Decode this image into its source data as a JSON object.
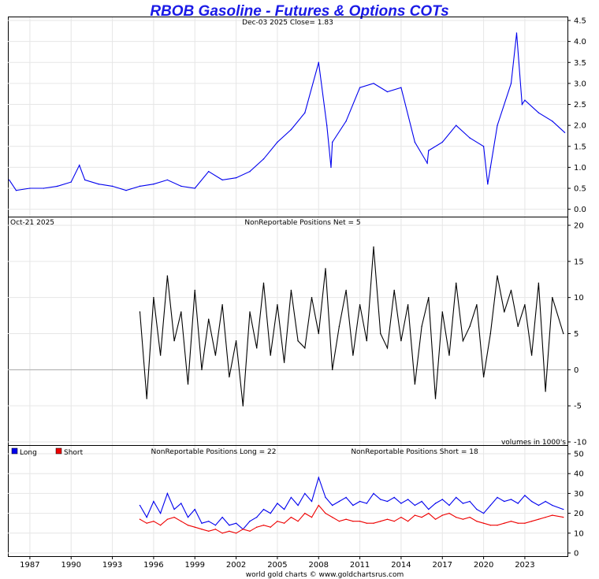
{
  "chart_data": [
    {
      "type": "line",
      "title": "RBOB Gasoline - Futures & Options COTs",
      "header": "Dec-03  2025   Close= 1.83",
      "series": [
        {
          "name": "RBOB Gasoline price",
          "color": "#0000ee",
          "x": [
            1985.5,
            1986,
            1987,
            1988,
            1989,
            1990,
            1990.6,
            1991,
            1992,
            1993,
            1994,
            1995,
            1996,
            1997,
            1998,
            1999,
            2000,
            2001,
            2002,
            2003,
            2004,
            2005,
            2006,
            2007,
            2008,
            2008.6,
            2008.9,
            2009,
            2010,
            2011,
            2012,
            2013,
            2014,
            2015,
            2015.9,
            2016,
            2017,
            2018,
            2019,
            2020,
            2020.3,
            2020.5,
            2021,
            2022,
            2022.4,
            2022.8,
            2023,
            2024,
            2025,
            2025.9
          ],
          "values": [
            0.7,
            0.45,
            0.5,
            0.5,
            0.55,
            0.65,
            1.05,
            0.7,
            0.6,
            0.55,
            0.45,
            0.55,
            0.6,
            0.7,
            0.55,
            0.5,
            0.9,
            0.7,
            0.75,
            0.9,
            1.2,
            1.6,
            1.9,
            2.3,
            3.5,
            2.0,
            1.0,
            1.6,
            2.1,
            2.9,
            3.0,
            2.8,
            2.9,
            1.6,
            1.1,
            1.4,
            1.6,
            2.0,
            1.7,
            1.5,
            0.6,
            1.0,
            2.0,
            3.0,
            4.2,
            2.5,
            2.6,
            2.3,
            2.1,
            1.83
          ]
        }
      ],
      "ylim": [
        -0.1,
        4.5
      ],
      "yticks": [
        "4.5",
        "4.0",
        "3.5",
        "3.0",
        "2.5",
        "2.0",
        "1.5",
        "1.0",
        "0.5",
        "0.0"
      ],
      "xlim": [
        1985.4,
        2026.1
      ]
    },
    {
      "type": "line",
      "date_label": "Oct-21  2025",
      "title": "NonReportable Positions Net = 5",
      "note": "volumes in 1000's",
      "series": [
        {
          "name": "NonReportable Net",
          "color": "#000000",
          "x": [
            1995,
            1995.5,
            1996,
            1996.5,
            1997,
            1997.5,
            1998,
            1998.5,
            1999,
            1999.5,
            2000,
            2000.5,
            2001,
            2001.5,
            2002,
            2002.5,
            2003,
            2003.5,
            2004,
            2004.5,
            2005,
            2005.5,
            2006,
            2006.5,
            2007,
            2007.5,
            2008,
            2008.5,
            2009,
            2009.5,
            2010,
            2010.5,
            2011,
            2011.5,
            2012,
            2012.5,
            2013,
            2013.5,
            2014,
            2014.5,
            2015,
            2015.5,
            2016,
            2016.5,
            2017,
            2017.5,
            2018,
            2018.5,
            2019,
            2019.5,
            2020,
            2020.5,
            2021,
            2021.5,
            2022,
            2022.5,
            2023,
            2023.5,
            2024,
            2024.5,
            2025,
            2025.8
          ],
          "values": [
            8,
            -4,
            10,
            2,
            13,
            4,
            8,
            -2,
            11,
            0,
            7,
            2,
            9,
            -1,
            4,
            -5,
            8,
            3,
            12,
            2,
            9,
            1,
            11,
            4,
            3,
            10,
            5,
            14,
            0,
            6,
            11,
            2,
            9,
            4,
            17,
            5,
            3,
            11,
            4,
            9,
            -2,
            6,
            10,
            -4,
            8,
            2,
            12,
            4,
            6,
            9,
            -1,
            5,
            13,
            8,
            11,
            6,
            9,
            2,
            12,
            -3,
            10,
            5
          ]
        }
      ],
      "ylim": [
        -10,
        20
      ],
      "yticks": [
        "20",
        "15",
        "10",
        "5",
        "0",
        "-5",
        "-10"
      ],
      "xlim": [
        1985.4,
        2026.1
      ]
    },
    {
      "type": "line",
      "title_long": "NonReportable Positions Long = 22",
      "title_short": "NonReportable Positions Short = 18",
      "legend": [
        "Long",
        "Short"
      ],
      "series": [
        {
          "name": "Long",
          "color": "#0000ee",
          "x": [
            1995,
            1995.5,
            1996,
            1996.5,
            1997,
            1997.5,
            1998,
            1998.5,
            1999,
            1999.5,
            2000,
            2000.5,
            2001,
            2001.5,
            2002,
            2002.5,
            2003,
            2003.5,
            2004,
            2004.5,
            2005,
            2005.5,
            2006,
            2006.5,
            2007,
            2007.5,
            2008,
            2008.5,
            2009,
            2009.5,
            2010,
            2010.5,
            2011,
            2011.5,
            2012,
            2012.5,
            2013,
            2013.5,
            2014,
            2014.5,
            2015,
            2015.5,
            2016,
            2016.5,
            2017,
            2017.5,
            2018,
            2018.5,
            2019,
            2019.5,
            2020,
            2020.5,
            2021,
            2021.5,
            2022,
            2022.5,
            2023,
            2023.5,
            2024,
            2024.5,
            2025,
            2025.8
          ],
          "values": [
            24,
            18,
            26,
            20,
            30,
            22,
            25,
            18,
            22,
            15,
            16,
            14,
            18,
            14,
            15,
            12,
            16,
            18,
            22,
            20,
            25,
            22,
            28,
            24,
            30,
            26,
            38,
            28,
            24,
            26,
            28,
            24,
            26,
            25,
            30,
            27,
            26,
            28,
            25,
            27,
            24,
            26,
            22,
            25,
            27,
            24,
            28,
            25,
            26,
            22,
            20,
            24,
            28,
            26,
            27,
            25,
            29,
            26,
            24,
            26,
            24,
            22
          ]
        },
        {
          "name": "Short",
          "color": "#ee0000",
          "x": [
            1995,
            1995.5,
            1996,
            1996.5,
            1997,
            1997.5,
            1998,
            1998.5,
            1999,
            1999.5,
            2000,
            2000.5,
            2001,
            2001.5,
            2002,
            2002.5,
            2003,
            2003.5,
            2004,
            2004.5,
            2005,
            2005.5,
            2006,
            2006.5,
            2007,
            2007.5,
            2008,
            2008.5,
            2009,
            2009.5,
            2010,
            2010.5,
            2011,
            2011.5,
            2012,
            2012.5,
            2013,
            2013.5,
            2014,
            2014.5,
            2015,
            2015.5,
            2016,
            2016.5,
            2017,
            2017.5,
            2018,
            2018.5,
            2019,
            2019.5,
            2020,
            2020.5,
            2021,
            2021.5,
            2022,
            2022.5,
            2023,
            2023.5,
            2024,
            2024.5,
            2025,
            2025.8
          ],
          "values": [
            17,
            15,
            16,
            14,
            17,
            18,
            16,
            14,
            13,
            12,
            11,
            12,
            10,
            11,
            10,
            12,
            11,
            13,
            14,
            13,
            16,
            15,
            18,
            16,
            20,
            18,
            24,
            20,
            18,
            16,
            17,
            16,
            16,
            15,
            15,
            16,
            17,
            16,
            18,
            16,
            19,
            18,
            20,
            17,
            19,
            20,
            18,
            17,
            18,
            16,
            15,
            14,
            14,
            15,
            16,
            15,
            15,
            16,
            17,
            18,
            19,
            18
          ]
        }
      ],
      "ylim": [
        0,
        50
      ],
      "yticks": [
        "50",
        "40",
        "30",
        "20",
        "10",
        "0"
      ],
      "xlim": [
        1985.4,
        2026.1
      ]
    }
  ],
  "x_axis": {
    "tick_labels": [
      "1987",
      "1990",
      "1993",
      "1996",
      "1999",
      "2002",
      "2005",
      "2008",
      "2011",
      "2014",
      "2017",
      "2020",
      "2023"
    ],
    "tick_years": [
      1987,
      1990,
      1993,
      1996,
      1999,
      2002,
      2005,
      2008,
      2011,
      2014,
      2017,
      2020,
      2023
    ]
  },
  "footer": "world gold charts © www.goldchartsrus.com"
}
